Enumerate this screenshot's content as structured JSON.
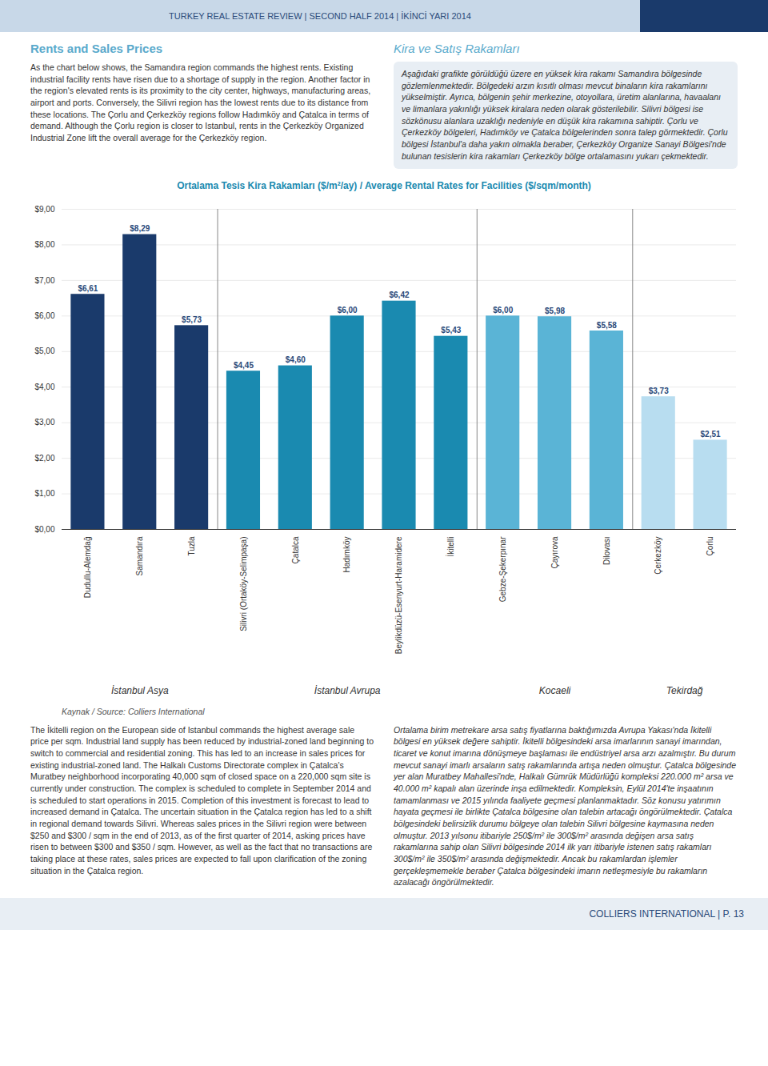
{
  "header_text": "TURKEY REAL ESTATE REVIEW  |  SECOND HALF 2014  |  İKİNCİ YARI 2014",
  "title_left": "Rents and Sales Prices",
  "title_right": "Kira ve Satış Rakamları",
  "left_text_col1": "As the chart below shows, the Samandıra region commands the highest rents. Existing industrial facility rents have risen due to a shortage of supply in the region. Another factor in the region's elevated rents is its proximity to the city center, highways, manufacturing areas, airport and ports. Conversely, the Silivri region has the lowest rents due to its distance from these locations. The Çorlu and Çerkezköy regions follow Hadımköy and Çatalca in terms of demand. Although the Çorlu region is closer to Istanbul, rents in the Çerkezköy Organized Industrial Zone lift the overall average for the Çerkezköy region.",
  "right_text_col1": "Aşağıdaki grafikte görüldüğü üzere en yüksek kira rakamı Samandıra bölgesinde gözlemlenmektedir. Bölgedeki arzın kısıtlı olması mevcut binaların kira rakamlarını yükselmiştir. Ayrıca, bölgenin şehir merkezine, otoyollara, üretim alanlarına, havaalanı ve limanlara yakınlığı yüksek kiralara neden olarak gösterilebilir. Silivri bölgesi ise sözkönusu alanlara uzaklığı nedeniyle en düşük kira rakamına sahiptir. Çorlu ve Çerkezköy bölgeleri, Hadımköy ve Çatalca bölgelerinden sonra talep görmektedir. Çorlu bölgesi İstanbul'a daha yakın olmakla beraber, Çerkezköy Organize Sanayi Bölgesi'nde bulunan tesislerin kira rakamları Çerkezköy bölge ortalamasını yukarı çekmektedir.",
  "left_text_col2": "The İkitelli region on the European side of Istanbul commands the highest average sale price per sqm. Industrial land supply has been reduced by industrial-zoned land beginning to switch to commercial and residential zoning. This has led to an increase in sales prices for existing industrial-zoned land. The Halkalı Customs Directorate complex in Çatalca's Muratbey neighborhood incorporating 40,000 sqm of closed space on a 220,000 sqm site is currently under construction. The complex is scheduled to complete in September 2014 and is scheduled to start operations in 2015. Completion of this investment is forecast to lead to increased demand in Çatalca. The uncertain situation in the Çatalca region has led to a shift in regional demand towards Silivri. Whereas sales prices in the Silivri region were between $250 and $300 / sqm in the end of 2013, as of the first quarter of 2014, asking prices have risen to between $300 and $350 / sqm. However, as well as the fact that no transactions are taking place at these rates, sales prices are expected to fall upon clarification of the zoning situation in the Çatalca region.",
  "right_text_col2": "Ortalama birim metrekare arsa satış fiyatlarına baktığımızda Avrupa Yakası'nda İkitelli bölgesi en yüksek değere sahiptir. İkitelli bölgesindeki arsa imarlarının sanayi imarından, ticaret ve konut imarına dönüşmeye başlaması ile endüstriyel arsa arzı azalmıştır. Bu durum mevcut sanayi imarlı arsaların satış rakamlarında artışa neden olmuştur. Çatalca bölgesinde yer alan Muratbey Mahallesi'nde, Halkalı Gümrük Müdürlüğü kompleksi 220.000 m² arsa ve 40.000 m² kapalı alan üzerinde inşa edilmektedir. Kompleksin, Eylül 2014'te inşaatının tamamlanması ve 2015 yılında faaliyete geçmesi planlanmaktadır. Söz konusu yatırımın hayata geçmesi ile birlikte Çatalca bölgesine olan talebin artacağı öngörülmektedir. Çatalca bölgesindeki belirsizlik durumu bölgeye olan talebin Silivri bölgesine kaymasına neden olmuştur. 2013 yılsonu itibariyle 250$/m² ile 300$/m² arasında değişen arsa satış rakamlarına sahip olan Silivri bölgesinde 2014 ilk yarı itibariyle istenen satış rakamları 300$/m² ile 350$/m² arasında değişmektedir. Ancak bu rakamlardan işlemler gerçekleşmemekle beraber Çatalca bölgesindeki imarın netleşmesiyle bu rakamların azalacağı öngörülmektedir.",
  "source_text": "Kaynak / Source: Colliers International",
  "footer_text": "COLLIERS INTERNATIONAL  |  P. 13",
  "chart_data": {
    "type": "bar",
    "title": "Ortalama Tesis Kira Rakamları ($/m²/ay) / Average Rental Rates for Facilities ($/sqm/month)",
    "categories": [
      "Dudullu-Alemdağ",
      "Samandıra",
      "Tuzla",
      "Silivri (Ortaköy-Selimpaşa)",
      "Çatalca",
      "Hadımköy",
      "Beylikdüzü-Esenyurt-Haramidere",
      "İkitelli",
      "Gebze-Şekerpınar",
      "Çayırova",
      "Dilovası",
      "Çerkezköy",
      "Çorlu"
    ],
    "values": [
      6.61,
      8.29,
      5.73,
      4.45,
      4.6,
      6.0,
      6.42,
      5.43,
      6.0,
      5.98,
      5.58,
      3.73,
      2.51
    ],
    "value_labels": [
      "$6,61",
      "$8,29",
      "$5,73",
      "$4,45",
      "$4,60",
      "$6,00",
      "$6,42",
      "$5,43",
      "$6,00",
      "$5,98",
      "$5,58",
      "$3,73",
      "$2,51"
    ],
    "colors": [
      "#1a3a6b",
      "#1a3a6b",
      "#1a3a6b",
      "#1a8ab0",
      "#1a8ab0",
      "#1a8ab0",
      "#1a8ab0",
      "#1a8ab0",
      "#5ab4d6",
      "#5ab4d6",
      "#5ab4d6",
      "#b8ddf0",
      "#b8ddf0"
    ],
    "groups": [
      {
        "label": "İstanbul Asya",
        "categories": [
          "Dudullu-Alemdağ",
          "Samandıra",
          "Tuzla"
        ]
      },
      {
        "label": "İstanbul Avrupa",
        "categories": [
          "Silivri (Ortaköy-Selimpaşa)",
          "Çatalca",
          "Hadımköy",
          "Beylikdüzü-Esenyurt-Haramidere",
          "İkitelli"
        ]
      },
      {
        "label": "Kocaeli",
        "categories": [
          "Gebze-Şekerpınar",
          "Çayırova",
          "Dilovası"
        ]
      },
      {
        "label": "Tekirdağ",
        "categories": [
          "Çerkezköy",
          "Çorlu"
        ]
      }
    ],
    "ylim": [
      0,
      9.0
    ],
    "yticks": [
      {
        "value": 0,
        "label": "$0,00"
      },
      {
        "value": 1,
        "label": "$1,00"
      },
      {
        "value": 2,
        "label": "$2,00"
      },
      {
        "value": 3,
        "label": "$3,00"
      },
      {
        "value": 4,
        "label": "$4,00"
      },
      {
        "value": 5,
        "label": "$5,00"
      },
      {
        "value": 6,
        "label": "$6,00"
      },
      {
        "value": 7,
        "label": "$7,00"
      },
      {
        "value": 8,
        "label": "$8,00"
      },
      {
        "value": 9,
        "label": "$9,00"
      }
    ],
    "grid": true,
    "data_labels": true
  }
}
